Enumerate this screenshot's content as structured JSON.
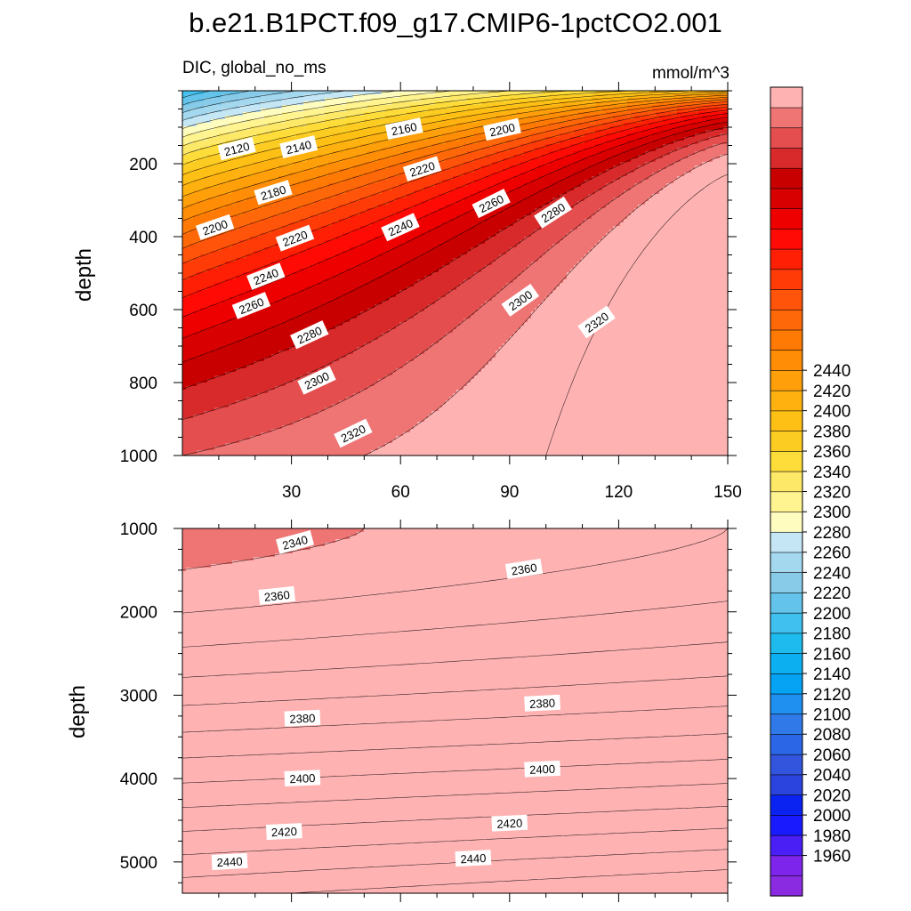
{
  "title": "b.e21.B1PCT.f09_g17.CMIP6-1pctCO2.001",
  "colors": [
    "#8a2be2",
    "#7d25ea",
    "#4a1ff5",
    "#1a1aff",
    "#0a23f0",
    "#2a44dd",
    "#3355dd",
    "#2a66e6",
    "#2f7ae8",
    "#1f8ff0",
    "#06a3f5",
    "#0cb0f0",
    "#1ebbee",
    "#3fc0ef",
    "#63c3ea",
    "#87cbe8",
    "#a4d8ef",
    "#c4e6f5",
    "#fffcc0",
    "#fff490",
    "#fde868",
    "#fedd3a",
    "#fdcc22",
    "#ffc015",
    "#ffb20f",
    "#ff9f0a",
    "#ff8d05",
    "#ff7a04",
    "#ff6808",
    "#ff540a",
    "#ff3c08",
    "#ff1f04",
    "#ff0a04",
    "#ee0000",
    "#d80000",
    "#c80000",
    "#d82a2a",
    "#e44e4e",
    "#ef7575",
    "#ffb2b2"
  ],
  "colorbar": {
    "labels": [
      "1960",
      "1980",
      "2000",
      "2020",
      "2040",
      "2060",
      "2080",
      "2100",
      "2120",
      "2140",
      "2160",
      "2180",
      "2200",
      "2220",
      "2240",
      "2260",
      "2280",
      "2300",
      "2320",
      "2340",
      "2360",
      "2380",
      "2400",
      "2420",
      "2440"
    ]
  },
  "chart_data": [
    {
      "type": "heatmap",
      "title": "DIC, global_no_ms",
      "units": "mmol/m^3",
      "xlabel": "",
      "ylabel": "depth",
      "xlim": [
        0,
        150
      ],
      "ylim": [
        0,
        1000
      ],
      "y_inverted": true,
      "x_ticks": [
        "30",
        "60",
        "90",
        "120",
        "150"
      ],
      "y_ticks": [
        "200",
        "400",
        "600",
        "800",
        "1000"
      ],
      "contour_level_min": 1950,
      "contour_level_max": 2460,
      "contour_interval": 10,
      "contour_labels": [
        {
          "text": "2120",
          "x": 15,
          "y": 160
        },
        {
          "text": "2140",
          "x": 32,
          "y": 155
        },
        {
          "text": "2160",
          "x": 61,
          "y": 105
        },
        {
          "text": "2200",
          "x": 88,
          "y": 107
        },
        {
          "text": "2180",
          "x": 25,
          "y": 280
        },
        {
          "text": "2220",
          "x": 66,
          "y": 215
        },
        {
          "text": "2200",
          "x": 9,
          "y": 375
        },
        {
          "text": "2220",
          "x": 31,
          "y": 405
        },
        {
          "text": "2240",
          "x": 60,
          "y": 375
        },
        {
          "text": "2260",
          "x": 85,
          "y": 310
        },
        {
          "text": "2280",
          "x": 102,
          "y": 335
        },
        {
          "text": "2240",
          "x": 23,
          "y": 510
        },
        {
          "text": "2260",
          "x": 19,
          "y": 590
        },
        {
          "text": "2300",
          "x": 93,
          "y": 575
        },
        {
          "text": "2320",
          "x": 114,
          "y": 635
        },
        {
          "text": "2280",
          "x": 35,
          "y": 670
        },
        {
          "text": "2300",
          "x": 37,
          "y": 795
        },
        {
          "text": "2320",
          "x": 47,
          "y": 940
        }
      ]
    },
    {
      "type": "heatmap",
      "title": "",
      "units": "",
      "xlabel": "",
      "ylabel": "depth",
      "xlim": [
        0,
        150
      ],
      "ylim": [
        1000,
        5375
      ],
      "y_inverted": true,
      "x_ticks": [],
      "y_ticks": [
        "1000",
        "2000",
        "3000",
        "4000",
        "5000"
      ],
      "contour_level_min": 1950,
      "contour_level_max": 2460,
      "contour_interval": 10,
      "contour_labels": [
        {
          "text": "2340",
          "x": 31,
          "y": 1170
        },
        {
          "text": "2360",
          "x": 94,
          "y": 1490
        },
        {
          "text": "2360",
          "x": 26,
          "y": 1810
        },
        {
          "text": "2380",
          "x": 33,
          "y": 3280
        },
        {
          "text": "2380",
          "x": 99,
          "y": 3100
        },
        {
          "text": "2400",
          "x": 33,
          "y": 4000
        },
        {
          "text": "2400",
          "x": 99,
          "y": 3890
        },
        {
          "text": "2420",
          "x": 28,
          "y": 4640
        },
        {
          "text": "2420",
          "x": 90,
          "y": 4540
        },
        {
          "text": "2440",
          "x": 13,
          "y": 5000
        },
        {
          "text": "2440",
          "x": 80,
          "y": 4960
        }
      ]
    }
  ]
}
